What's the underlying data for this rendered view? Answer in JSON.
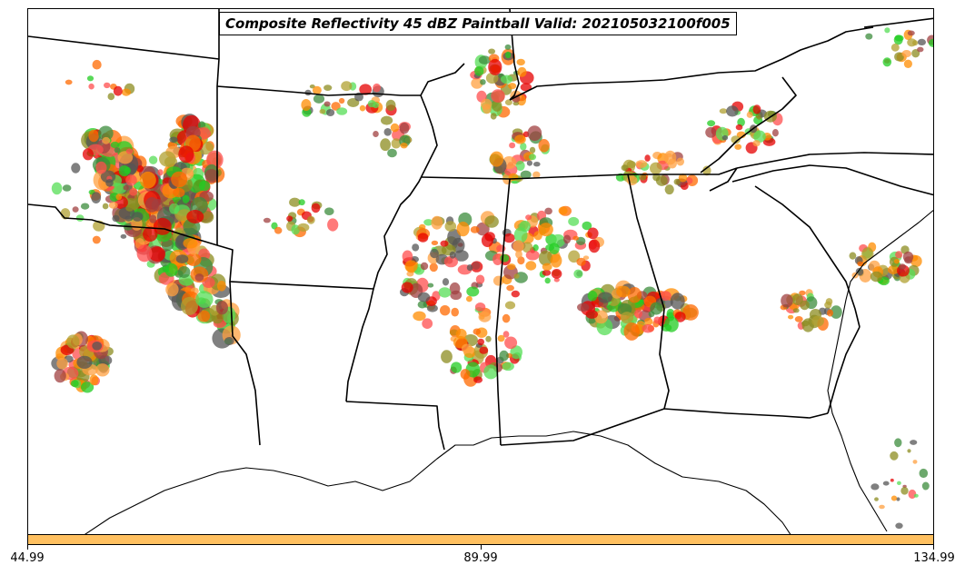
{
  "title": "Composite Reflectivity 45 dBZ Paintball Valid: 202105032100f005",
  "colorbar": {
    "color": "#ffc060",
    "tick_labels": [
      "44.99",
      "89.99",
      "134.99"
    ]
  },
  "colors": {
    "member_palette": [
      "#e60000",
      "#ff4d4d",
      "#22cc22",
      "#55dd55",
      "#ff8c00",
      "#ffa040",
      "#8c8c20",
      "#b0a030",
      "#a04040",
      "#3c8c3c",
      "#555555",
      "#ff6a00"
    ],
    "boundary": "#000000"
  }
}
